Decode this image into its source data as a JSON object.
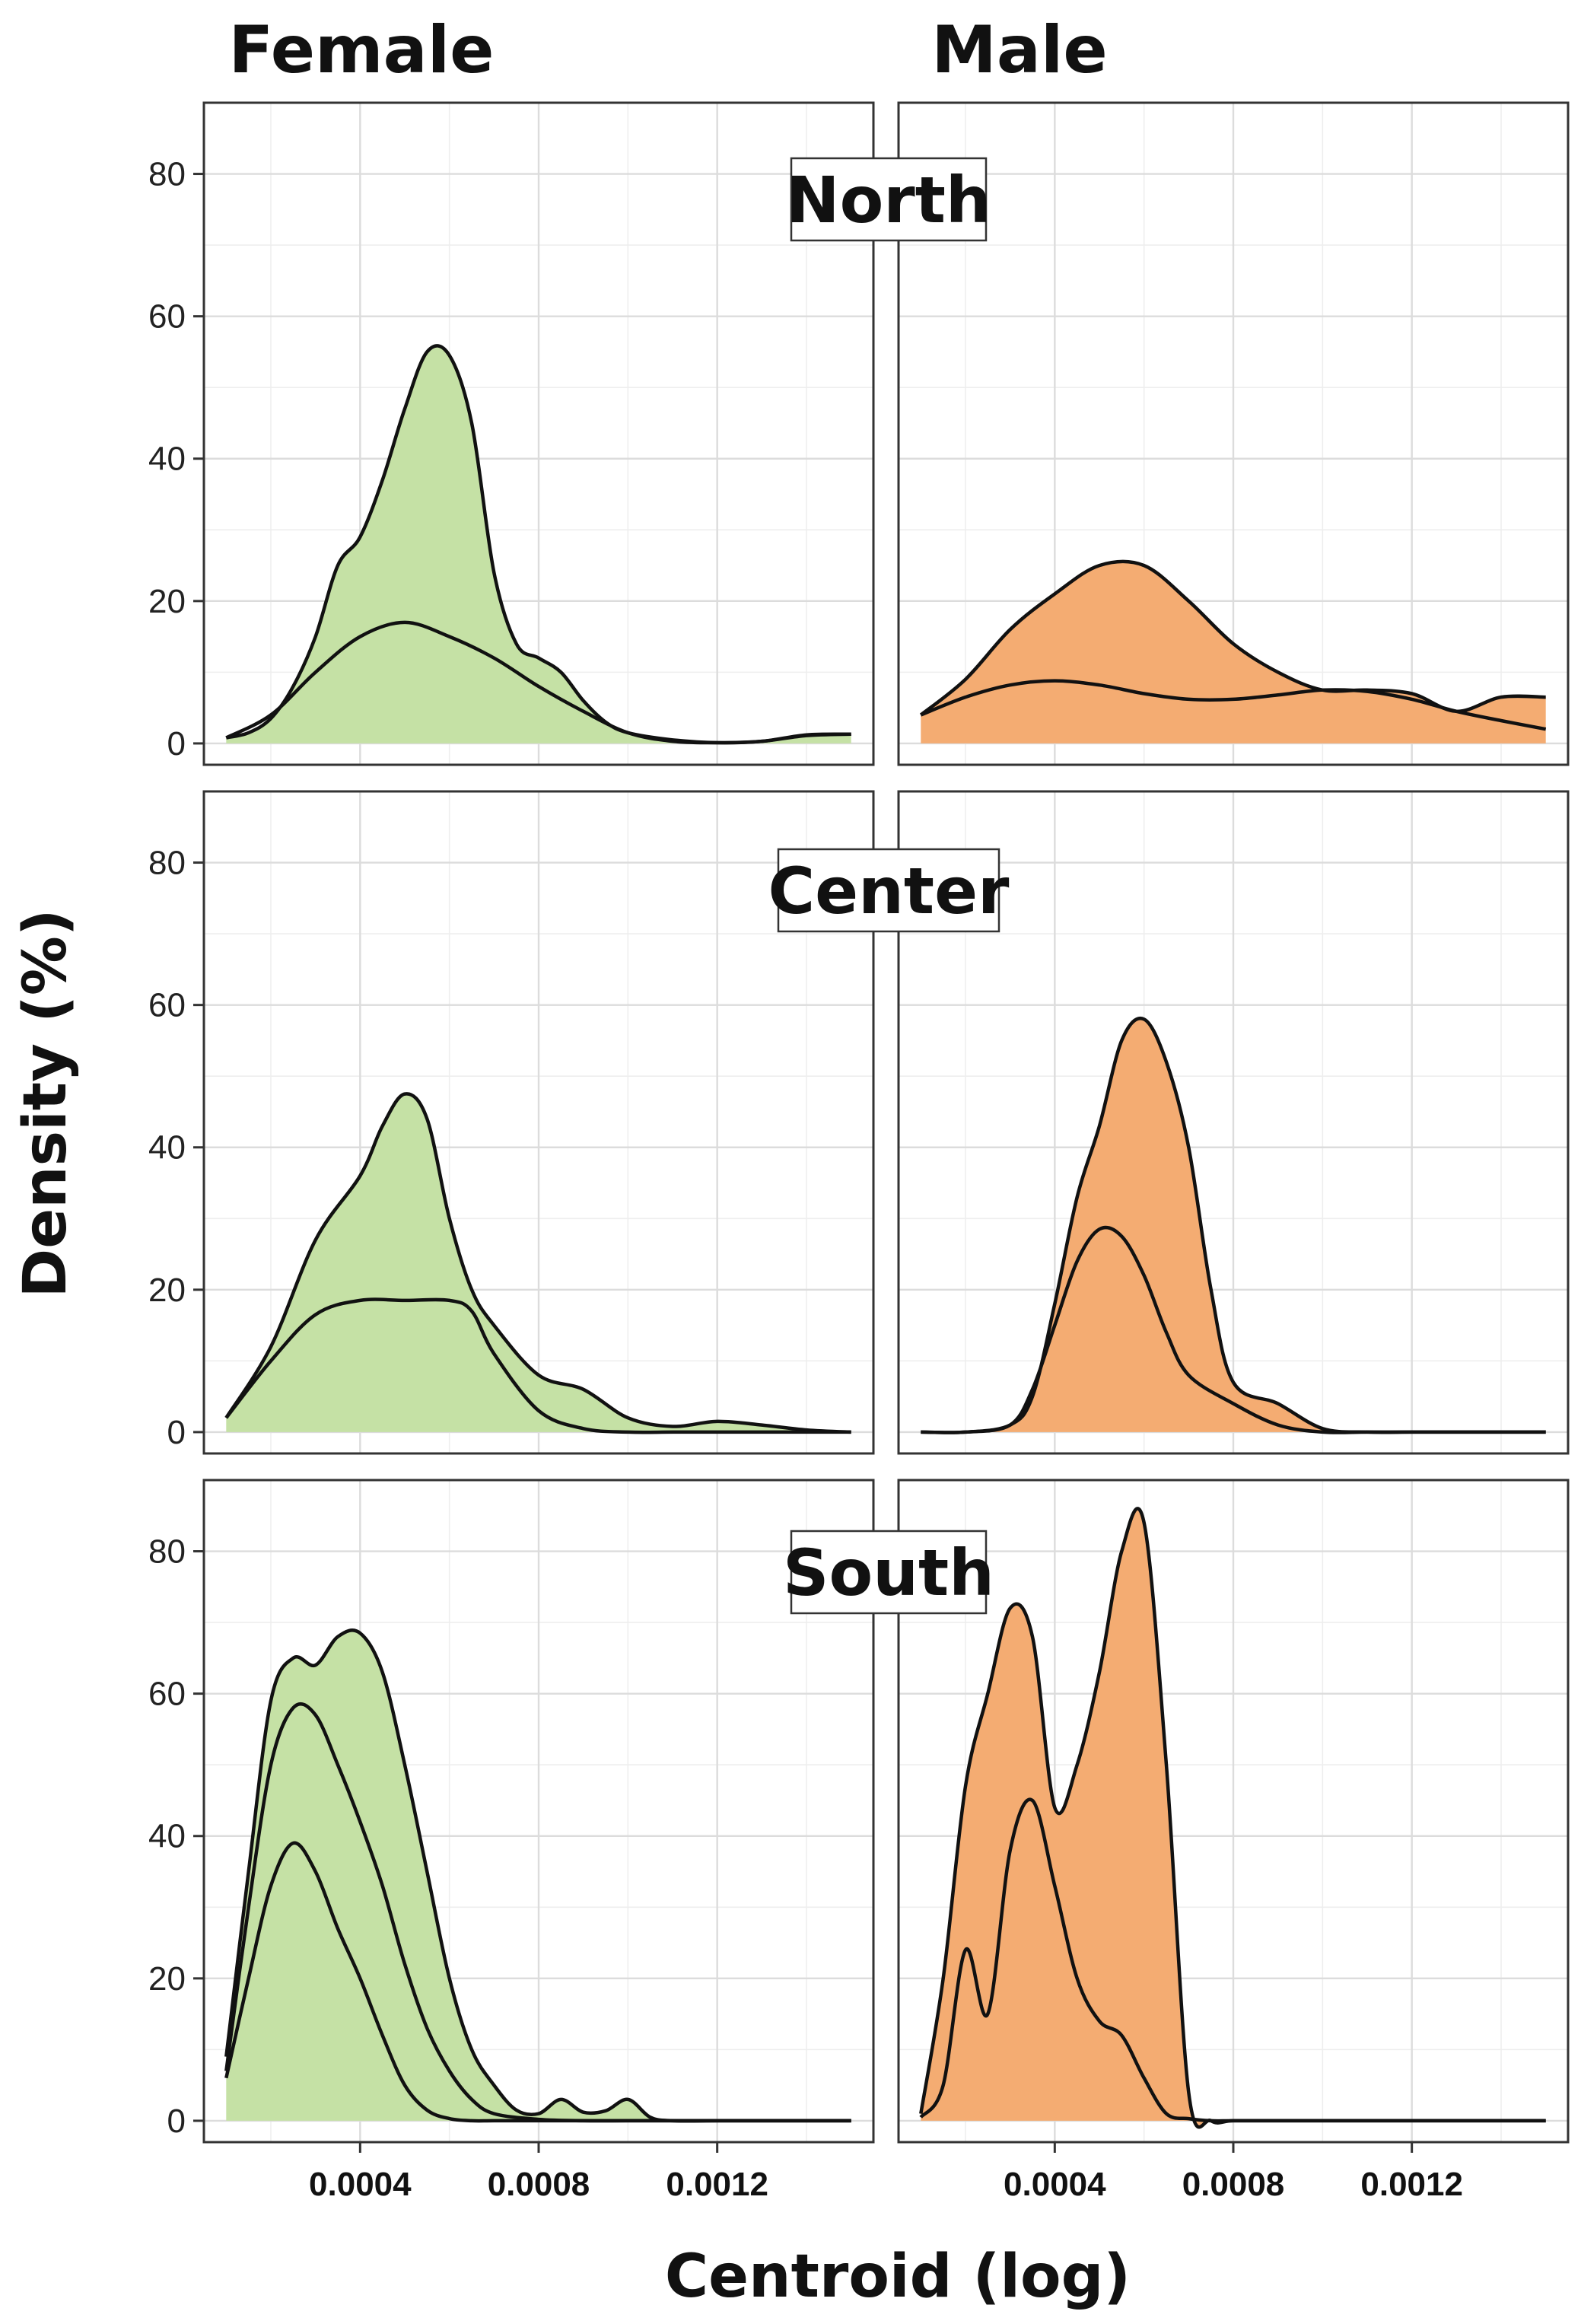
{
  "chart_data": {
    "type": "area",
    "title": "",
    "columns": [
      "Female",
      "Male"
    ],
    "rows": [
      "North",
      "Center",
      "South"
    ],
    "xlabel": "Centroid (log)",
    "ylabel": "Density (%)",
    "xlim": [
      5e-05,
      0.00155
    ],
    "ylim": [
      -3,
      90
    ],
    "x_ticks": [
      0.0004,
      0.0008,
      0.0012
    ],
    "x_tick_labels": [
      "0.0004",
      "0.0008",
      "0.0012"
    ],
    "y_ticks": [
      0,
      20,
      40,
      60,
      80
    ],
    "y_tick_labels": [
      "0",
      "20",
      "40",
      "60",
      "80"
    ],
    "x_minor_ticks": [
      0.0002,
      0.0006,
      0.001,
      0.0014
    ],
    "y_minor_ticks": [
      10,
      30,
      50,
      70
    ],
    "fill_colors": {
      "Female": "#c5e1a5",
      "Male": "#f4ac72"
    },
    "line_color": "#111111",
    "panels": [
      {
        "column": "Female",
        "row": "North",
        "fill_x": [
          0.0001,
          0.00015,
          0.0002,
          0.00025,
          0.0003,
          0.00035,
          0.0004,
          0.00045,
          0.0005,
          0.00055,
          0.0006,
          0.00065,
          0.0007,
          0.00075,
          0.0008,
          0.00085,
          0.0009,
          0.00095,
          0.001,
          0.0011,
          0.0012,
          0.0013,
          0.0014,
          0.0015
        ],
        "fill_y": [
          0.8,
          1.5,
          3.5,
          8,
          15,
          25,
          29,
          37,
          47,
          55,
          54.5,
          45,
          24,
          14,
          12,
          10,
          6,
          3,
          1.5,
          0.5,
          0.1,
          0.3,
          1.2,
          1.3
        ],
        "lines": [
          {
            "x": [
              0.0001,
              0.0002,
              0.0003,
              0.0004,
              0.0005,
              0.0006,
              0.0007,
              0.0008,
              0.0009,
              0.001,
              0.0011,
              0.0012,
              0.0013,
              0.0014,
              0.0015
            ],
            "y": [
              0.8,
              4,
              10,
              15,
              17,
              15,
              12,
              8,
              4.5,
              1.5,
              0.3,
              0.1,
              0.3,
              1.1,
              1.3
            ]
          }
        ]
      },
      {
        "column": "Male",
        "row": "North",
        "fill_x": [
          0.0001,
          0.0002,
          0.0003,
          0.0004,
          0.0005,
          0.0006,
          0.0007,
          0.0008,
          0.0009,
          0.001,
          0.0011,
          0.0012,
          0.0013,
          0.0014,
          0.0015
        ],
        "fill_y": [
          4,
          9,
          16,
          21,
          25,
          25,
          20,
          14,
          10,
          7.5,
          7.5,
          7,
          4.5,
          6.5,
          6.5
        ],
        "lines": [
          {
            "x": [
              0.0001,
              0.0002,
              0.0003,
              0.0004,
              0.0005,
              0.0006,
              0.0007,
              0.0008,
              0.0009,
              0.001,
              0.0011,
              0.0012,
              0.0013,
              0.0014,
              0.0015
            ],
            "y": [
              4,
              6.5,
              8.2,
              8.8,
              8.2,
              7,
              6.2,
              6.2,
              6.8,
              7.5,
              7.3,
              6.2,
              4.5,
              3.2,
              2
            ]
          }
        ]
      },
      {
        "column": "Female",
        "row": "Center",
        "fill_x": [
          0.0001,
          0.0002,
          0.0003,
          0.0004,
          0.00045,
          0.0005,
          0.00055,
          0.0006,
          0.00065,
          0.0007,
          0.0008,
          0.0009,
          0.001,
          0.0011,
          0.0012,
          0.0013,
          0.0014,
          0.0015
        ],
        "fill_y": [
          2,
          12,
          27,
          36,
          43,
          47.5,
          44,
          30,
          20,
          15,
          8,
          6,
          2,
          0.8,
          1.5,
          1,
          0.3,
          0
        ],
        "lines": [
          {
            "x": [
              0.0001,
              0.0002,
              0.0003,
              0.0004,
              0.0005,
              0.0006,
              0.00065,
              0.0007,
              0.0008,
              0.0009,
              0.001,
              0.0011,
              0.0012,
              0.0013,
              0.0014,
              0.0015
            ],
            "y": [
              2,
              10,
              16.5,
              18.5,
              18.5,
              18.5,
              17,
              11,
              3,
              0.5,
              0,
              0,
              0,
              0,
              0,
              0
            ]
          }
        ]
      },
      {
        "column": "Male",
        "row": "Center",
        "fill_x": [
          0.0001,
          0.0002,
          0.0003,
          0.00035,
          0.0004,
          0.00045,
          0.0005,
          0.00055,
          0.0006,
          0.00065,
          0.0007,
          0.00075,
          0.0008,
          0.0009,
          0.001,
          0.0011,
          0.0012,
          0.0013,
          0.0014,
          0.0015
        ],
        "fill_y": [
          0,
          0,
          1,
          5,
          18,
          33,
          43,
          55,
          58,
          52,
          40,
          20,
          7,
          4,
          0.5,
          0,
          0,
          0,
          0,
          0
        ],
        "lines": [
          {
            "x": [
              0.0001,
              0.0002,
              0.0003,
              0.00035,
              0.0004,
              0.00045,
              0.0005,
              0.00055,
              0.0006,
              0.00065,
              0.0007,
              0.0008,
              0.0009,
              0.001,
              0.0011,
              0.0012,
              0.0013,
              0.0014,
              0.0015
            ],
            "y": [
              0,
              0,
              1,
              6,
              15,
              24,
              28.5,
              27.5,
              22,
              14,
              8,
              4,
              1,
              0,
              0,
              0,
              0,
              0,
              0
            ]
          }
        ]
      },
      {
        "column": "Female",
        "row": "South",
        "fill_x": [
          0.0001,
          0.00015,
          0.0002,
          0.00025,
          0.0003,
          0.00035,
          0.0004,
          0.00045,
          0.0005,
          0.00055,
          0.0006,
          0.00065,
          0.0007,
          0.00075,
          0.0008,
          0.00085,
          0.0009,
          0.00095,
          0.001,
          0.00105,
          0.0011,
          0.0012,
          0.0013,
          0.0014,
          0.0015
        ],
        "fill_y": [
          9,
          35,
          59,
          65,
          64,
          68,
          68.5,
          63,
          50,
          35,
          20,
          10,
          5,
          1.5,
          1,
          3,
          1.2,
          1.4,
          3,
          0.5,
          0,
          0,
          0,
          0,
          0
        ],
        "lines": [
          {
            "x": [
              0.0001,
              0.00015,
              0.0002,
              0.00025,
              0.0003,
              0.00035,
              0.0004,
              0.00045,
              0.0005,
              0.00055,
              0.0006,
              0.00065,
              0.0007,
              0.0008,
              0.0009,
              0.001,
              0.0011,
              0.0012,
              0.0013,
              0.0014,
              0.0015
            ],
            "y": [
              7,
              30,
              50,
              58,
              57,
              50,
              42,
              33,
              22,
              13,
              7,
              3,
              1,
              0.2,
              0,
              0,
              0,
              0,
              0,
              0,
              0
            ]
          },
          {
            "x": [
              0.0001,
              0.00015,
              0.0002,
              0.00025,
              0.0003,
              0.00035,
              0.0004,
              0.00045,
              0.0005,
              0.00055,
              0.0006,
              0.00065,
              0.0007,
              0.0008,
              0.0009,
              0.001,
              0.0011,
              0.0012,
              0.0013,
              0.0014,
              0.0015
            ],
            "y": [
              6,
              20,
              33,
              39,
              35,
              27,
              20,
              12,
              5,
              1.5,
              0.3,
              0,
              0,
              0,
              0,
              0,
              0,
              0,
              0,
              0,
              0
            ]
          }
        ]
      },
      {
        "column": "Male",
        "row": "South",
        "fill_x": [
          0.0001,
          0.00015,
          0.0002,
          0.00025,
          0.0003,
          0.00035,
          0.0004,
          0.00045,
          0.0005,
          0.00055,
          0.0006,
          0.00065,
          0.0007,
          0.00075,
          0.0008,
          0.0009,
          0.001,
          0.0011,
          0.0012,
          0.0013,
          0.0014,
          0.0015
        ],
        "fill_y": [
          1,
          20,
          47,
          60,
          72,
          68,
          44,
          50,
          63,
          80,
          84,
          50,
          4,
          0,
          0,
          0,
          0,
          0,
          0,
          0,
          0,
          0
        ],
        "lines": [
          {
            "x": [
              0.0001,
              0.00015,
              0.0002,
              0.00025,
              0.0003,
              0.00035,
              0.0004,
              0.00045,
              0.0005,
              0.00055,
              0.0006,
              0.00065,
              0.0007,
              0.00075,
              0.0008,
              0.0009,
              0.001,
              0.0011,
              0.0012,
              0.0013,
              0.0014,
              0.0015
            ],
            "y": [
              0.5,
              5,
              24,
              15,
              38,
              45,
              33,
              20,
              14,
              12,
              6,
              1,
              0.3,
              0,
              0,
              0,
              0,
              0,
              0,
              0,
              0,
              0
            ]
          }
        ]
      }
    ]
  }
}
